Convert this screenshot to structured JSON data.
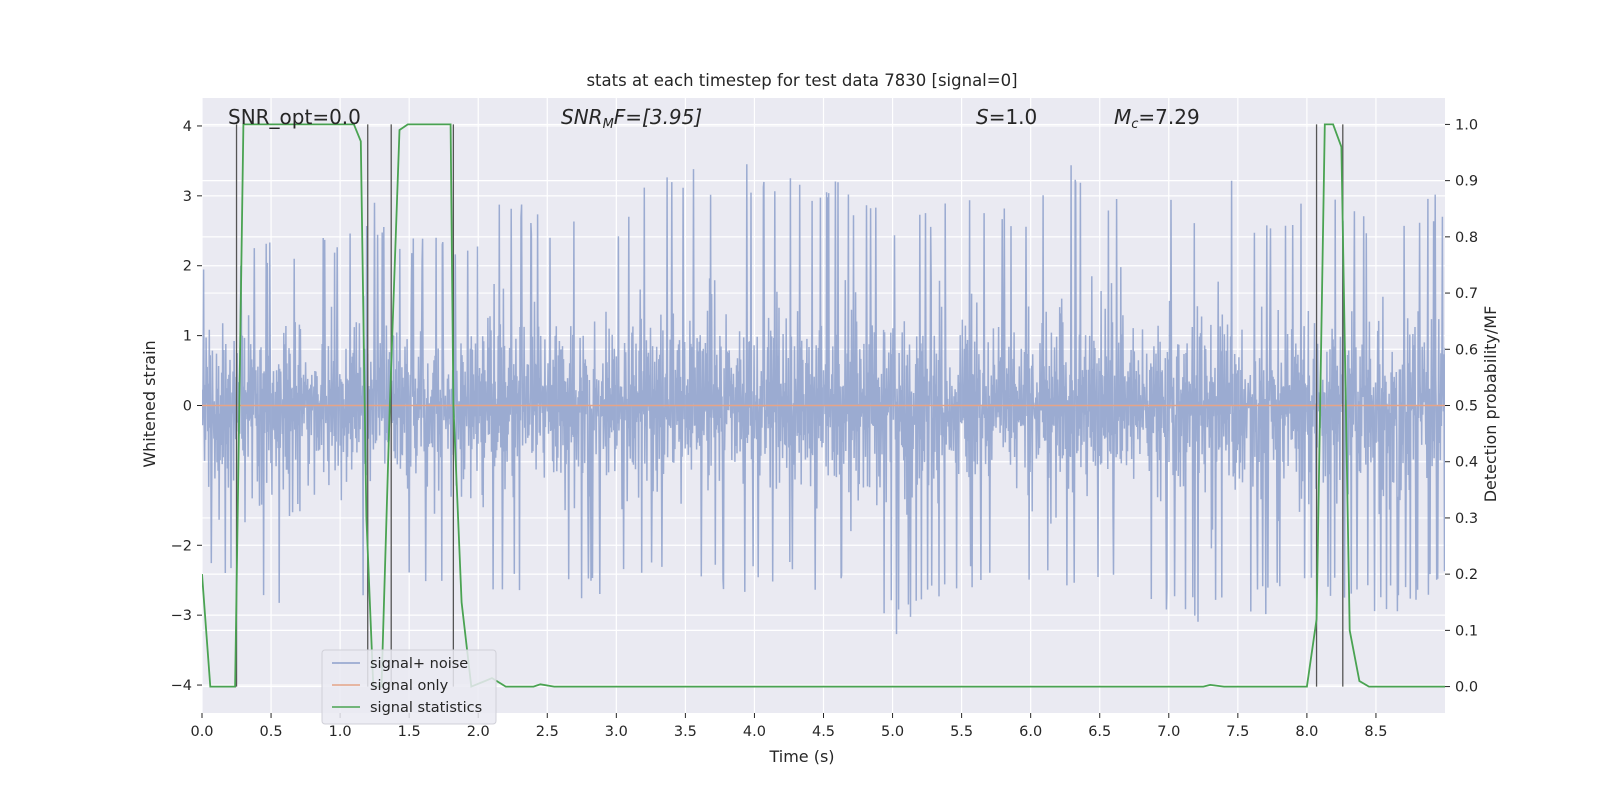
{
  "chart_data": {
    "type": "line",
    "title": "stats at each timestep for test data 7830 [signal=0]",
    "xlabel": "Time (s)",
    "ylabel": "Whitened strain",
    "y2label": "Detection probability/MF",
    "xlim": [
      0,
      9
    ],
    "ylim": [
      -4.4,
      4.4
    ],
    "y2lim": [
      -0.047,
      1.047
    ],
    "xticks": [
      "0.0",
      "0.5",
      "1.0",
      "1.5",
      "2.0",
      "2.5",
      "3.0",
      "3.5",
      "4.0",
      "4.5",
      "5.0",
      "5.5",
      "6.0",
      "6.5",
      "7.0",
      "7.5",
      "8.0",
      "8.5"
    ],
    "yticks": [
      "4",
      "3",
      "2",
      "1",
      "0",
      "−2",
      "−3",
      "−4"
    ],
    "y2ticks": [
      "1.0",
      "0.9",
      "0.8",
      "0.7",
      "0.6",
      "0.5",
      "0.4",
      "0.3",
      "0.2",
      "0.1",
      "0.0"
    ],
    "grid": true,
    "legend_position": "lower-left",
    "annotations": {
      "snr_opt": "SNR_opt=0.0",
      "snr_mf_prefix": "SNR",
      "snr_mf_sub": "M",
      "snr_mf_suffix": "F=[3.95]",
      "s_symbol": "S",
      "s_value": "=1.0",
      "mc_symbol": "M",
      "mc_sub": "c",
      "mc_value": "=7.29"
    },
    "series": [
      {
        "name": "signal+ noise",
        "color": "#8da0cb",
        "envelope_upper": [
          [
            0,
            2.2
          ],
          [
            0.5,
            2.4
          ],
          [
            1.0,
            2.4
          ],
          [
            1.2,
            3.0
          ],
          [
            1.5,
            2.4
          ],
          [
            2.0,
            2.5
          ],
          [
            2.06,
            3.5
          ],
          [
            2.5,
            2.6
          ],
          [
            3.0,
            2.7
          ],
          [
            3.2,
            3.3
          ],
          [
            4.0,
            3.5
          ],
          [
            4.5,
            3.3
          ],
          [
            5.0,
            2.8
          ],
          [
            5.5,
            3.0
          ],
          [
            6.0,
            2.8
          ],
          [
            6.2,
            3.6
          ],
          [
            6.5,
            3.3
          ],
          [
            7.0,
            3.0
          ],
          [
            7.2,
            3.0
          ],
          [
            7.35,
            4.0
          ],
          [
            7.6,
            2.8
          ],
          [
            8.0,
            3.0
          ],
          [
            8.2,
            3.0
          ],
          [
            8.5,
            2.7
          ],
          [
            9.0,
            3.1
          ]
        ],
        "envelope_lower": [
          [
            0,
            -2.4
          ],
          [
            0.3,
            -2.8
          ],
          [
            0.7,
            -3.5
          ],
          [
            1.0,
            -2.8
          ],
          [
            1.2,
            -2.8
          ],
          [
            1.6,
            -2.5
          ],
          [
            2.0,
            -2.8
          ],
          [
            2.5,
            -2.8
          ],
          [
            3.0,
            -2.8
          ],
          [
            3.2,
            -2.6
          ],
          [
            3.9,
            -2.7
          ],
          [
            4.4,
            -2.6
          ],
          [
            4.95,
            -3.2
          ],
          [
            5.05,
            -3.3
          ],
          [
            5.5,
            -2.6
          ],
          [
            6.0,
            -2.7
          ],
          [
            6.5,
            -2.6
          ],
          [
            6.9,
            -3.0
          ],
          [
            7.3,
            -3.2
          ],
          [
            7.6,
            -3.1
          ],
          [
            8.0,
            -2.7
          ],
          [
            8.6,
            -3.0
          ],
          [
            9.0,
            -2.6
          ]
        ]
      },
      {
        "name": "signal only",
        "color": "#e5a488",
        "values": [
          [
            0,
            0
          ],
          [
            9,
            0
          ]
        ]
      },
      {
        "name": "signal statistics",
        "color": "#4aa352",
        "axis": "right",
        "values": [
          [
            0,
            0.2
          ],
          [
            0.06,
            0.0
          ],
          [
            0.1,
            0.0
          ],
          [
            0.16,
            0.0
          ],
          [
            0.24,
            0.0
          ],
          [
            0.27,
            0.5
          ],
          [
            0.3,
            1.0
          ],
          [
            1.1,
            1.0
          ],
          [
            1.15,
            0.97
          ],
          [
            1.19,
            0.3
          ],
          [
            1.24,
            0.0
          ],
          [
            1.3,
            0.0
          ],
          [
            1.36,
            0.5
          ],
          [
            1.43,
            0.99
          ],
          [
            1.49,
            1.0
          ],
          [
            1.8,
            1.0
          ],
          [
            1.82,
            0.5
          ],
          [
            1.88,
            0.15
          ],
          [
            1.95,
            0.0
          ],
          [
            2.05,
            0.01
          ],
          [
            2.1,
            0.015
          ],
          [
            2.2,
            0.0
          ],
          [
            2.3,
            0.0
          ],
          [
            2.4,
            0.0
          ],
          [
            2.45,
            0.004
          ],
          [
            2.55,
            0.0
          ],
          [
            7.25,
            0.0
          ],
          [
            7.3,
            0.003
          ],
          [
            7.4,
            0.0
          ],
          [
            8.0,
            0.0
          ],
          [
            8.07,
            0.12
          ],
          [
            8.13,
            1.0
          ],
          [
            8.19,
            1.0
          ],
          [
            8.25,
            0.96
          ],
          [
            8.31,
            0.1
          ],
          [
            8.38,
            0.01
          ],
          [
            8.45,
            0.0
          ],
          [
            9.0,
            0.0
          ]
        ]
      }
    ],
    "vlines": [
      0.25,
      1.2,
      1.37,
      1.82,
      8.07,
      8.26
    ]
  }
}
